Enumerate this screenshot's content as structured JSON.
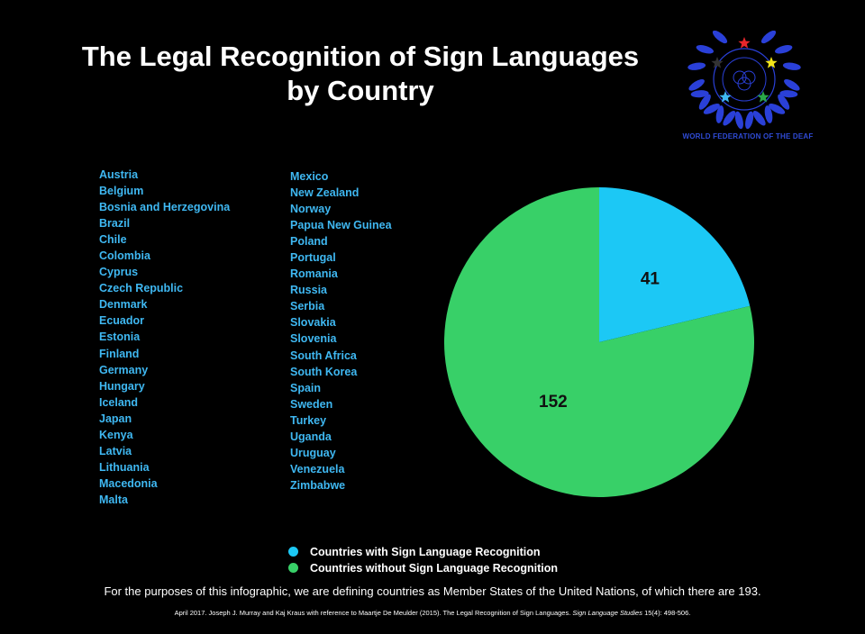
{
  "header": {
    "title_line1": "The Legal Recognition of Sign Languages",
    "title_line2": "by Country"
  },
  "logo": {
    "caption": "WORLD FEDERATION OF THE DEAF",
    "star_colors": [
      "#e8262b",
      "#f2e51a",
      "#2aa84a",
      "#3fb8f2",
      "#333333"
    ],
    "wreath_color": "#2a40d8"
  },
  "countries_left": [
    "Austria",
    "Belgium",
    "Bosnia and Herzegovina",
    "Brazil",
    "Chile",
    "Colombia",
    "Cyprus",
    "Czech Republic",
    "Denmark",
    "Ecuador",
    "Estonia",
    "Finland",
    "Germany",
    "Hungary",
    "Iceland",
    "Japan",
    "Kenya",
    "Latvia",
    "Lithuania",
    "Macedonia",
    "Malta"
  ],
  "countries_right": [
    "Mexico",
    "New Zealand",
    "Norway",
    "Papua New Guinea",
    "Poland",
    "Portugal",
    "Romania",
    "Russia",
    "Serbia",
    "Slovakia",
    "Slovenia",
    "South Africa",
    "South Korea",
    "Spain",
    "Sweden",
    "Turkey",
    "Uganda",
    "Uruguay",
    "Venezuela",
    "Zimbabwe"
  ],
  "chart_data": {
    "type": "pie",
    "slices": [
      {
        "name": "Countries with Sign Language Recognition",
        "value": 41,
        "label": "41",
        "color": "#1cc8f5"
      },
      {
        "name": "Countries without Sign Language Recognition",
        "value": 152,
        "label": "152",
        "color": "#38d068"
      }
    ],
    "legend_position": "bottom"
  },
  "footer": {
    "note": "For the purposes of this infographic, we are defining countries as Member States of the United Nations, of which there are 193.",
    "citation_pre": "April 2017. Joseph J. Murray and Kaj Kraus with reference to Maartje De Meulder (2015). The Legal Recognition of Sign Languages.",
    "citation_journal": "Sign Language Studies",
    "citation_post": "15(4): 498-506."
  }
}
